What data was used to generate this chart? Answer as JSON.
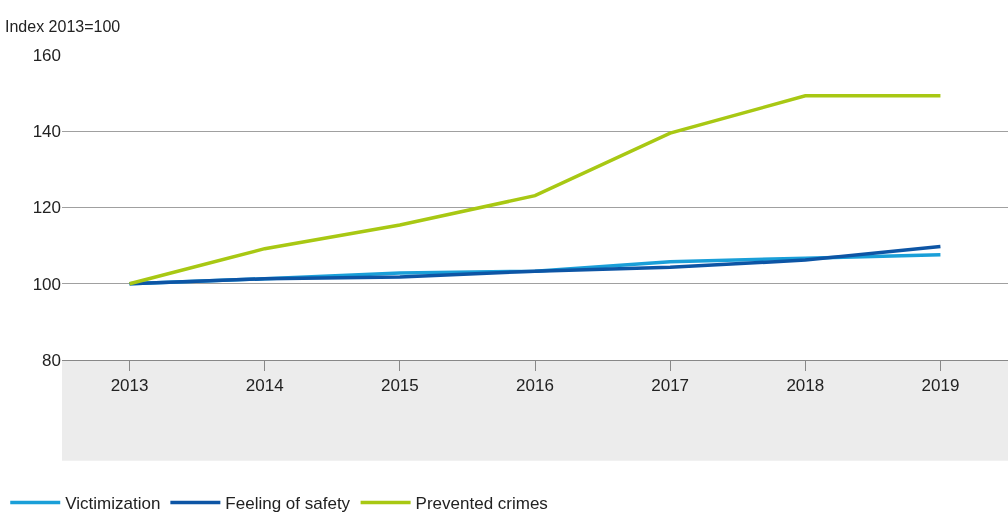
{
  "chart_data": {
    "type": "line",
    "ylabel": "Index 2013=100",
    "categories": [
      "2013",
      "2014",
      "2015",
      "2016",
      "2017",
      "2018",
      "2019"
    ],
    "series": [
      {
        "name": "Victimization",
        "color": "#1a9fd8",
        "values": [
          100,
          101.3,
          102.8,
          103.3,
          105.8,
          106.7,
          107.6
        ]
      },
      {
        "name": "Feeling of safety",
        "color": "#0d55a5",
        "values": [
          100,
          101.3,
          101.8,
          103.3,
          104.3,
          106.2,
          109.8
        ]
      },
      {
        "name": "Prevented crimes",
        "color": "#a8c813",
        "values": [
          100,
          109.2,
          115.4,
          123.1,
          139.5,
          149.3,
          149.3
        ]
      }
    ],
    "ylim": [
      80,
      160
    ],
    "yticks": [
      80,
      100,
      120,
      140,
      160
    ],
    "grid": "y",
    "legend": "bottom",
    "marker": "none",
    "line_style": "solid"
  }
}
